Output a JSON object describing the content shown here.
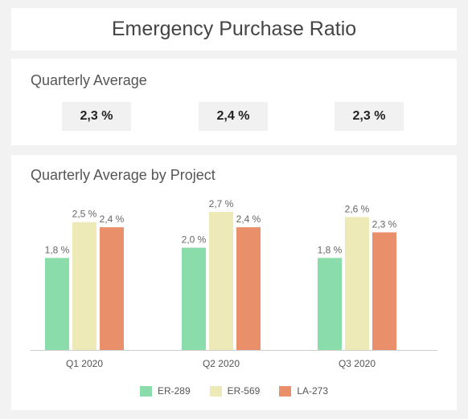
{
  "header": {
    "title": "Emergency Purchase Ratio"
  },
  "quarterly_average": {
    "title": "Quarterly Average",
    "values": [
      "2,3 %",
      "2,4 %",
      "2,3 %"
    ]
  },
  "project_chart": {
    "title": "Quarterly Average by Project"
  },
  "chart_data": {
    "type": "bar",
    "title": "Quarterly Average by Project",
    "categories": [
      "Q1 2020",
      "Q2 2020",
      "Q3 2020"
    ],
    "series": [
      {
        "name": "ER-289",
        "color": "#8adcaa",
        "values": [
          1.8,
          2.0,
          1.8
        ],
        "labels": [
          "1,8 %",
          "2,0 %",
          "1,8 %"
        ]
      },
      {
        "name": "ER-569",
        "color": "#eeeab7",
        "values": [
          2.5,
          2.7,
          2.6
        ],
        "labels": [
          "2,5 %",
          "2,7 %",
          "2,6 %"
        ]
      },
      {
        "name": "LA-273",
        "color": "#e9906a",
        "values": [
          2.4,
          2.4,
          2.3
        ],
        "labels": [
          "2,4 %",
          "2,4 %",
          "2,3 %"
        ]
      }
    ],
    "ylim": [
      0,
      2.7
    ],
    "grid": false,
    "legend": "bottom"
  }
}
